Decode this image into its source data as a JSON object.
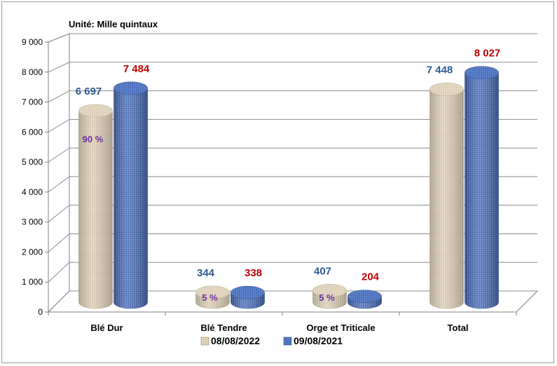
{
  "chart_data": {
    "type": "bar",
    "unit_label": "Unité: Mille quintaux",
    "categories": [
      "Blé Dur",
      "Blé Tendre",
      "Orge et Triticale",
      "Total"
    ],
    "series": [
      {
        "name": "08/08/2022",
        "values": [
          6697,
          344,
          407,
          7448
        ],
        "labels": [
          "6 697",
          "344",
          "407",
          "7 448"
        ],
        "color": "#d9cdb3",
        "label_color": "#2e5a8f"
      },
      {
        "name": "09/08/2021",
        "values": [
          7484,
          338,
          204,
          8027
        ],
        "labels": [
          "7 484",
          "338",
          "204",
          "8 027"
        ],
        "color": "#4a72c0",
        "label_color": "#c00000"
      }
    ],
    "percent_labels": [
      "90 %",
      "5 %",
      "5 %",
      ""
    ],
    "y_ticks": [
      0,
      1000,
      2000,
      3000,
      4000,
      5000,
      6000,
      7000,
      8000,
      9000
    ],
    "y_tick_labels": [
      "0",
      "1 000",
      "2 000",
      "3 000",
      "4 000",
      "5 000",
      "6 000",
      "7 000",
      "8 000",
      "9 000"
    ],
    "ylim": [
      0,
      9000
    ],
    "grid": true,
    "legend_position": "bottom"
  }
}
